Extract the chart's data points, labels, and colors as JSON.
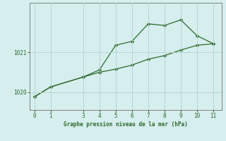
{
  "line1_x": [
    0,
    1,
    3,
    4,
    5,
    6,
    7,
    8,
    9,
    10,
    11
  ],
  "line1_y": [
    1019.88,
    1020.13,
    1020.38,
    1020.56,
    1021.18,
    1021.28,
    1021.72,
    1021.68,
    1021.82,
    1021.42,
    1021.22
  ],
  "line2_x": [
    0,
    1,
    3,
    4,
    5,
    6,
    7,
    8,
    9,
    10,
    11
  ],
  "line2_y": [
    1019.88,
    1020.13,
    1020.38,
    1020.5,
    1020.58,
    1020.68,
    1020.83,
    1020.92,
    1021.06,
    1021.18,
    1021.22
  ],
  "line_color": "#2d6a2d",
  "bg_color": "#d6eeee",
  "grid_color": "#b8d4d4",
  "xlabel": "Graphe pression niveau de la mer (hPa)",
  "yticks": [
    1020,
    1021
  ],
  "xticks": [
    0,
    1,
    3,
    4,
    5,
    6,
    7,
    8,
    9,
    10,
    11
  ],
  "xlim": [
    -0.3,
    11.5
  ],
  "ylim": [
    1019.55,
    1022.25
  ]
}
